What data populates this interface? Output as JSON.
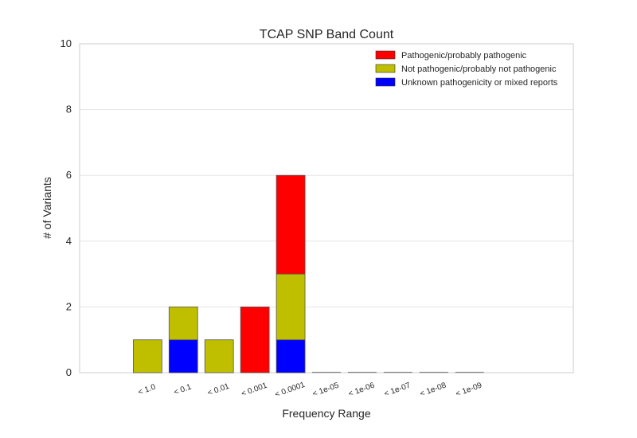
{
  "chart_data": {
    "type": "bar",
    "stacked": true,
    "title": "TCAP SNP Band Count",
    "xlabel": "Frequency Range",
    "ylabel": "# of Variants",
    "ylim": [
      0,
      10
    ],
    "yticks": [
      "0",
      "2",
      "4",
      "6",
      "8",
      "10"
    ],
    "xlim": [
      -1.9,
      11.9
    ],
    "grid": "horizontal",
    "legend_position": "top-right",
    "categories": [
      "< 1.0",
      "< 0.1",
      "< 0.01",
      "< 0.001",
      "< 0.0001",
      "< 1e-05",
      "< 1e-06",
      "< 1e-07",
      "< 1e-08",
      "< 1e-09"
    ],
    "series": [
      {
        "name": "Unknown pathogenicity or mixed reports",
        "color": "#0000ff",
        "values": [
          0,
          1,
          0,
          0,
          1,
          0,
          0,
          0,
          0,
          0
        ]
      },
      {
        "name": "Not pathogenic/probably not pathogenic",
        "color": "#bfbf00",
        "values": [
          1,
          1,
          1,
          0,
          2,
          0,
          0,
          0,
          0,
          0
        ]
      },
      {
        "name": "Pathogenic/probably pathogenic",
        "color": "#ff0000",
        "values": [
          0,
          0,
          0,
          2,
          3,
          0,
          0,
          0,
          0,
          0
        ]
      }
    ],
    "legend_order": [
      2,
      1,
      0
    ]
  }
}
